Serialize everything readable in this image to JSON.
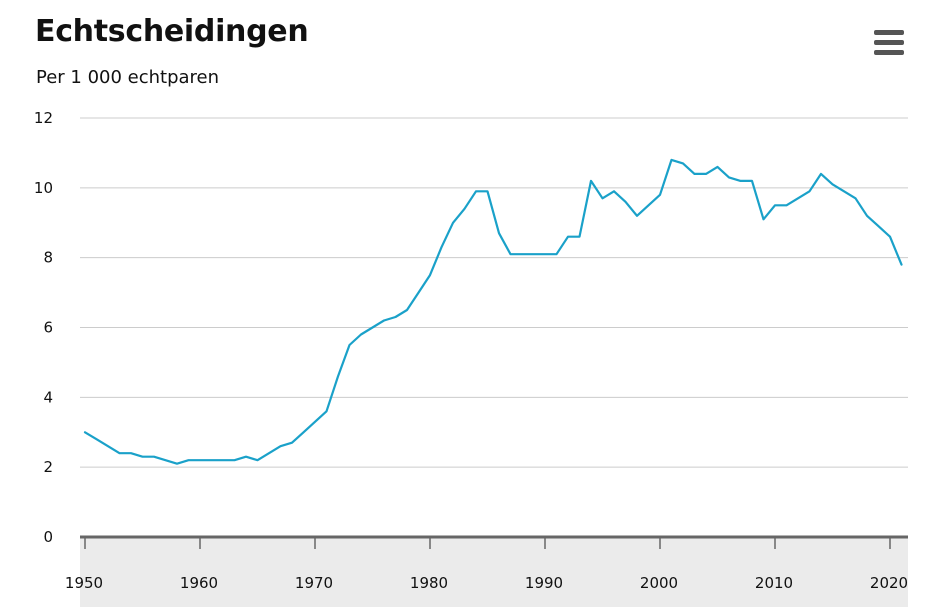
{
  "header": {
    "title": "Echtscheidingen",
    "subtitle": "Per 1 000 echtparen",
    "menu_icon": "hamburger-menu-icon"
  },
  "colors": {
    "line": "#1aa1c9",
    "grid": "#cccccc",
    "baseline": "#666666",
    "axis_band": "#ebebeb"
  },
  "chart_data": {
    "type": "line",
    "title": "Echtscheidingen",
    "subtitle": "Per 1 000 echtparen",
    "xlabel": "",
    "ylabel": "",
    "xlim": [
      1950,
      2021
    ],
    "ylim": [
      0,
      12
    ],
    "grid": true,
    "x_ticks": [
      1950,
      1960,
      1970,
      1980,
      1990,
      2000,
      2010,
      2020
    ],
    "y_ticks": [
      0,
      2,
      4,
      6,
      8,
      10,
      12
    ],
    "series": [
      {
        "x": [
          1950,
          1951,
          1952,
          1953,
          1954,
          1955,
          1956,
          1957,
          1958,
          1959,
          1960,
          1961,
          1962,
          1963,
          1964,
          1965,
          1966,
          1967,
          1968,
          1969,
          1970,
          1971,
          1972,
          1973,
          1974,
          1975,
          1976,
          1977,
          1978,
          1979,
          1980,
          1981,
          1982,
          1983,
          1984,
          1985,
          1986,
          1987,
          1988,
          1989,
          1990,
          1991,
          1992,
          1993,
          1994,
          1995,
          1996,
          1997,
          1998,
          1999,
          2000,
          2001,
          2002,
          2003,
          2004,
          2005,
          2006,
          2007,
          2008,
          2009,
          2010,
          2011,
          2012,
          2013,
          2014,
          2015,
          2016,
          2017,
          2018,
          2019,
          2020,
          2021
        ],
        "values": [
          3.0,
          2.8,
          2.6,
          2.4,
          2.4,
          2.3,
          2.3,
          2.2,
          2.1,
          2.2,
          2.2,
          2.2,
          2.2,
          2.2,
          2.3,
          2.2,
          2.4,
          2.6,
          2.7,
          3.0,
          3.3,
          3.6,
          4.6,
          5.5,
          5.8,
          6.0,
          6.2,
          6.3,
          6.5,
          7.0,
          7.5,
          8.3,
          9.0,
          9.4,
          9.9,
          9.9,
          8.7,
          8.1,
          8.1,
          8.1,
          8.1,
          8.1,
          8.6,
          8.6,
          10.2,
          9.7,
          9.9,
          9.6,
          9.2,
          9.5,
          9.8,
          10.8,
          10.7,
          10.4,
          10.4,
          10.6,
          10.3,
          10.2,
          10.2,
          9.1,
          9.5,
          9.5,
          9.7,
          9.9,
          10.4,
          10.1,
          9.9,
          9.7,
          9.2,
          8.9,
          8.6,
          7.8
        ]
      }
    ]
  }
}
